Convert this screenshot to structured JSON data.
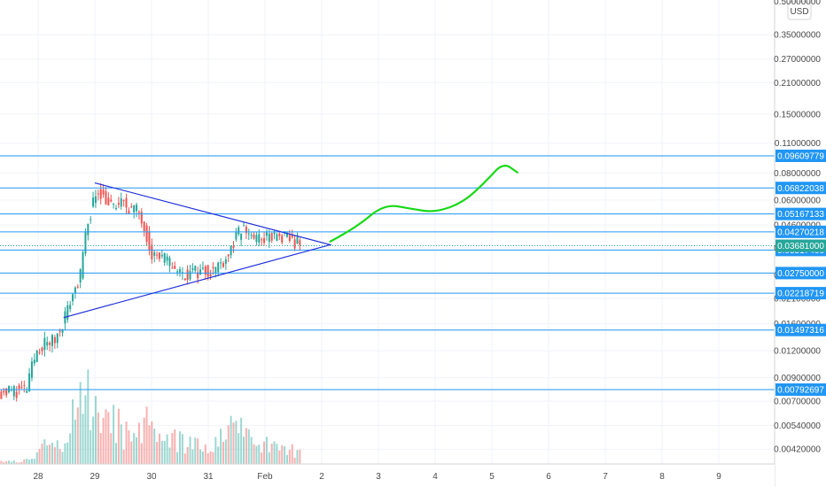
{
  "chart_data": {
    "type": "candlestick",
    "currency": "USD",
    "y_scale": "log",
    "ylim": [
      0.0039,
      0.5
    ],
    "y_ticks": [
      "0.50000000",
      "0.35000000",
      "0.27000000",
      "0.21000000",
      "0.15000000",
      "0.11000000",
      "0.08000000",
      "0.06000000",
      "0.04600000",
      "0.03600000",
      "0.02700000",
      "0.02100000",
      "0.01600000",
      "0.01200000",
      "0.00900000",
      "0.00700000",
      "0.00540000",
      "0.00420000"
    ],
    "x_ticks": [
      {
        "label": "28",
        "day": 28
      },
      {
        "label": "29",
        "day": 29
      },
      {
        "label": "30",
        "day": 30
      },
      {
        "label": "31",
        "day": 31
      },
      {
        "label": "Feb",
        "day": 32
      },
      {
        "label": "2",
        "day": 33
      },
      {
        "label": "3",
        "day": 34
      },
      {
        "label": "4",
        "day": 35
      },
      {
        "label": "5",
        "day": 36
      },
      {
        "label": "6",
        "day": 37
      },
      {
        "label": "7",
        "day": 38
      },
      {
        "label": "8",
        "day": 39
      },
      {
        "label": "9",
        "day": 40
      }
    ],
    "levels": [
      {
        "value": 0.09609779,
        "label": "0.09609779"
      },
      {
        "value": 0.06822038,
        "label": "0.06822038"
      },
      {
        "value": 0.05167133,
        "label": "0.05167133"
      },
      {
        "value": 0.04270218,
        "label": "0.04270218"
      },
      {
        "value": 0.03517466,
        "label": "0.03517466"
      },
      {
        "value": 0.0275,
        "label": "0.02750000"
      },
      {
        "value": 0.02218719,
        "label": "0.02218719"
      },
      {
        "value": 0.01497316,
        "label": "0.01497316"
      },
      {
        "value": 0.00792697,
        "label": "0.00792697"
      }
    ],
    "current_price": {
      "value": 0.03681,
      "label": "0.03681000"
    },
    "triangle": {
      "top_start": {
        "day": 29.0,
        "price": 0.072
      },
      "apex": {
        "day": 33.15,
        "price": 0.0372
      },
      "bottom_start": {
        "day": 28.45,
        "price": 0.0171
      }
    },
    "projection_path": [
      {
        "day": 33.15,
        "price": 0.0385
      },
      {
        "day": 33.6,
        "price": 0.0445
      },
      {
        "day": 34.1,
        "price": 0.0575
      },
      {
        "day": 34.6,
        "price": 0.0545
      },
      {
        "day": 35.0,
        "price": 0.0525
      },
      {
        "day": 35.5,
        "price": 0.0585
      },
      {
        "day": 35.9,
        "price": 0.0735
      },
      {
        "day": 36.2,
        "price": 0.0895
      },
      {
        "day": 36.45,
        "price": 0.0805
      }
    ],
    "price_anchors": [
      {
        "day": 27.35,
        "price": 0.0078
      },
      {
        "day": 27.8,
        "price": 0.0079
      },
      {
        "day": 28.0,
        "price": 0.0125
      },
      {
        "day": 28.3,
        "price": 0.0135
      },
      {
        "day": 28.5,
        "price": 0.018
      },
      {
        "day": 28.75,
        "price": 0.027
      },
      {
        "day": 28.9,
        "price": 0.05
      },
      {
        "day": 29.05,
        "price": 0.068
      },
      {
        "day": 29.3,
        "price": 0.055
      },
      {
        "day": 29.5,
        "price": 0.058
      },
      {
        "day": 29.8,
        "price": 0.052
      },
      {
        "day": 30.0,
        "price": 0.034
      },
      {
        "day": 30.3,
        "price": 0.031
      },
      {
        "day": 30.55,
        "price": 0.027
      },
      {
        "day": 30.8,
        "price": 0.028
      },
      {
        "day": 31.1,
        "price": 0.0285
      },
      {
        "day": 31.35,
        "price": 0.0335
      },
      {
        "day": 31.6,
        "price": 0.0445
      },
      {
        "day": 31.85,
        "price": 0.0395
      },
      {
        "day": 32.15,
        "price": 0.0405
      },
      {
        "day": 32.45,
        "price": 0.0395
      },
      {
        "day": 32.65,
        "price": 0.0368
      }
    ],
    "volume_anchors": [
      {
        "day": 27.35,
        "v": 0.03
      },
      {
        "day": 27.95,
        "v": 0.05
      },
      {
        "day": 28.05,
        "v": 0.25
      },
      {
        "day": 28.45,
        "v": 0.2
      },
      {
        "day": 28.6,
        "v": 0.6
      },
      {
        "day": 28.95,
        "v": 1.0
      },
      {
        "day": 29.15,
        "v": 0.7
      },
      {
        "day": 29.5,
        "v": 0.4
      },
      {
        "day": 29.9,
        "v": 0.5
      },
      {
        "day": 30.2,
        "v": 0.3
      },
      {
        "day": 30.6,
        "v": 0.3
      },
      {
        "day": 31.0,
        "v": 0.15
      },
      {
        "day": 31.6,
        "v": 0.55
      },
      {
        "day": 32.0,
        "v": 0.25
      },
      {
        "day": 32.65,
        "v": 0.15
      }
    ],
    "colors": {
      "up": "#26a69a",
      "down": "#ef5350",
      "level": "#2196f3",
      "triangle": "#1f2fd6",
      "projection": "#17d917",
      "price_badge": "#26a69a",
      "grid": "#f0f3fa",
      "axis_text": "#4a4a4a",
      "dotted_price": "#26a69a"
    }
  }
}
